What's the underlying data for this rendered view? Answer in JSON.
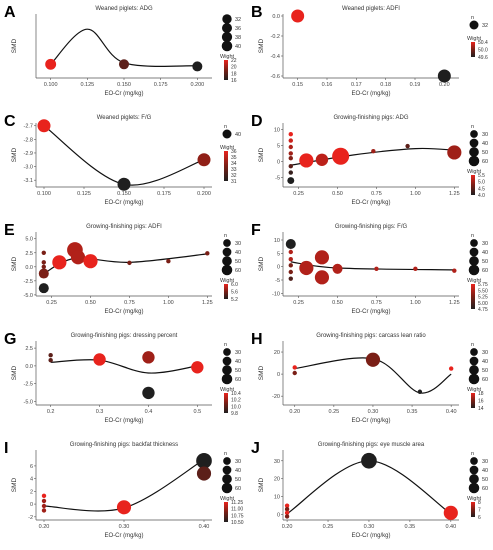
{
  "chart_data": [
    {
      "letter": "A",
      "type": "scatter",
      "title": "Weaned piglets: ADG",
      "xlabel": "EO-Cr (mg/kg)",
      "ylabel": "SMD",
      "xlim": [
        0.09,
        0.21
      ],
      "ylim": [
        -1,
        20
      ],
      "xticks": [
        0.1,
        0.125,
        0.15,
        0.175,
        0.2
      ],
      "xtick_labels": [
        "0.100",
        "0.125",
        "0.150",
        "0.175",
        "0.200"
      ],
      "yticks": [],
      "ytick_labels": [],
      "curve": [
        [
          0.1,
          3.5
        ],
        [
          0.125,
          15
        ],
        [
          0.15,
          4
        ],
        [
          0.2,
          3
        ]
      ],
      "points": [
        [
          0.1,
          3.5,
          22,
          18
        ],
        [
          0.15,
          3.5,
          18,
          16
        ],
        [
          0.2,
          2.8,
          16,
          16
        ]
      ],
      "legend": {
        "n_label": "",
        "n_values": [
          32,
          36,
          38,
          40
        ],
        "w_title": "Wight",
        "w_labels": [
          "22",
          "20",
          "18",
          "16"
        ]
      }
    },
    {
      "letter": "B",
      "type": "scatter",
      "title": "Weaned piglets: ADFI",
      "xlabel": "EO-Cr (mg/kg)",
      "ylabel": "SMD",
      "xlim": [
        0.145,
        0.205
      ],
      "ylim": [
        -0.62,
        0.02
      ],
      "xticks": [
        0.15,
        0.16,
        0.17,
        0.18,
        0.19,
        0.2
      ],
      "xtick_labels": [
        "0.15",
        "0.16",
        "0.17",
        "0.18",
        "0.19",
        "0.20"
      ],
      "yticks": [
        0.0,
        -0.2,
        -0.4,
        -0.6
      ],
      "ytick_labels": [
        "0.0",
        "-0.2",
        "-0.4",
        "-0.6"
      ],
      "curve": [],
      "points": [
        [
          0.15,
          0.0,
          50.4,
          32
        ],
        [
          0.2,
          -0.6,
          49.6,
          32
        ]
      ],
      "legend": {
        "n_label": "n",
        "n_values": [
          32
        ],
        "w_title": "Wight",
        "w_labels": [
          "50.4",
          "50.0",
          "49.6"
        ]
      }
    },
    {
      "letter": "C",
      "type": "scatter",
      "title": "Weaned piglets: F/G",
      "xlabel": "EO-Cr (mg/kg)",
      "ylabel": "SMD",
      "xlim": [
        0.095,
        0.205
      ],
      "ylim": [
        -3.15,
        -2.68
      ],
      "xticks": [
        0.1,
        0.125,
        0.15,
        0.175,
        0.2
      ],
      "xtick_labels": [
        "0.100",
        "0.125",
        "0.150",
        "0.175",
        "0.200"
      ],
      "yticks": [
        -2.7,
        -2.8,
        -2.9,
        -3.0,
        -3.1
      ],
      "ytick_labels": [
        "-2.7",
        "-2.8",
        "-2.9",
        "-3.0",
        "-3.1"
      ],
      "curve": [
        [
          0.1,
          -2.7
        ],
        [
          0.15,
          -3.13
        ],
        [
          0.2,
          -2.95
        ]
      ],
      "points": [
        [
          0.1,
          -2.7,
          36,
          40
        ],
        [
          0.15,
          -3.13,
          31,
          40
        ],
        [
          0.2,
          -2.95,
          34,
          40
        ]
      ],
      "legend": {
        "n_label": "n",
        "n_values": [
          40
        ],
        "w_title": "Wight",
        "w_labels": [
          "36",
          "35",
          "34",
          "33",
          "32",
          "31"
        ]
      }
    },
    {
      "letter": "D",
      "type": "scatter",
      "title": "Growing-finishing pigs: ADG",
      "xlabel": "EO-Cr (mg/kg)",
      "ylabel": "SMD",
      "xlim": [
        0.15,
        1.28
      ],
      "ylim": [
        -8,
        12
      ],
      "xticks": [
        0.25,
        0.5,
        0.75,
        1.0,
        1.25
      ],
      "xtick_labels": [
        "0.25",
        "0.50",
        "0.75",
        "1.00",
        "1.25"
      ],
      "yticks": [
        10,
        5,
        0,
        -5
      ],
      "ytick_labels": [
        "10",
        "5",
        "0",
        "-5"
      ],
      "curve": [
        [
          0.2,
          -1.2
        ],
        [
          0.6,
          2
        ],
        [
          1.0,
          4
        ],
        [
          1.25,
          3.5
        ]
      ],
      "points": [
        [
          0.2,
          8.5,
          5.5,
          10
        ],
        [
          0.2,
          6.5,
          5.3,
          10
        ],
        [
          0.2,
          4.5,
          5.1,
          10
        ],
        [
          0.2,
          2.5,
          5.0,
          10
        ],
        [
          0.2,
          1.0,
          4.8,
          10
        ],
        [
          0.2,
          -1.5,
          4.5,
          10
        ],
        [
          0.2,
          -3.5,
          4.2,
          10
        ],
        [
          0.2,
          -6,
          4.0,
          12
        ],
        [
          0.3,
          0.3,
          5.5,
          40
        ],
        [
          0.4,
          0.5,
          5.2,
          30
        ],
        [
          0.52,
          1.6,
          5.5,
          60
        ],
        [
          0.73,
          3.2,
          5.0,
          10
        ],
        [
          0.95,
          4.8,
          4.5,
          10
        ],
        [
          1.25,
          2.8,
          5.0,
          40
        ]
      ],
      "legend": {
        "n_label": "n",
        "n_values": [
          30,
          40,
          50,
          60
        ],
        "w_title": "Wight",
        "w_labels": [
          "5.5",
          "5.0",
          "4.5",
          "4.0"
        ]
      }
    },
    {
      "letter": "E",
      "type": "scatter",
      "title": "Growing-finishing pigs: ADFI",
      "xlabel": "EO-Cr (mg/kg)",
      "ylabel": "SMD",
      "xlim": [
        0.15,
        1.28
      ],
      "ylim": [
        -5.2,
        6.2
      ],
      "xticks": [
        0.25,
        0.5,
        0.75,
        1.0,
        1.25
      ],
      "xtick_labels": [
        "0.25",
        "0.50",
        "0.75",
        "1.00",
        "1.25"
      ],
      "yticks": [
        5.0,
        2.5,
        0.0,
        -2.5,
        -5.0
      ],
      "ytick_labels": [
        "5.0",
        "2.5",
        "0.0",
        "-2.5",
        "-5.0"
      ],
      "curve": [
        [
          0.2,
          -1.2
        ],
        [
          0.4,
          1.5
        ],
        [
          0.75,
          0.8
        ],
        [
          1.25,
          2.3
        ]
      ],
      "points": [
        [
          0.2,
          2.5,
          5.6,
          10
        ],
        [
          0.2,
          0.8,
          5.6,
          10
        ],
        [
          0.2,
          0.0,
          5.6,
          10
        ],
        [
          0.2,
          -1.2,
          5.6,
          20
        ],
        [
          0.2,
          -3.8,
          5.0,
          20
        ],
        [
          0.3,
          0.8,
          6.0,
          40
        ],
        [
          0.4,
          3.0,
          5.8,
          50
        ],
        [
          0.42,
          1.7,
          5.8,
          40
        ],
        [
          0.5,
          1.0,
          6.0,
          40
        ],
        [
          0.75,
          0.7,
          5.6,
          10
        ],
        [
          1.0,
          1.0,
          5.6,
          10
        ],
        [
          1.25,
          2.4,
          5.6,
          10
        ]
      ],
      "legend": {
        "n_label": "n",
        "n_values": [
          30,
          40,
          50,
          60
        ],
        "w_title": "Wight",
        "w_labels": [
          "6.0",
          "5.6",
          "5.2"
        ]
      }
    },
    {
      "letter": "F",
      "type": "scatter",
      "title": "Growing-finishing pigs: F/G",
      "xlabel": "EO-Cr (mg/kg)",
      "ylabel": "SMD",
      "xlim": [
        0.15,
        1.28
      ],
      "ylim": [
        -11,
        13
      ],
      "xticks": [
        0.25,
        0.5,
        0.75,
        1.0,
        1.25
      ],
      "xtick_labels": [
        "0.25",
        "0.50",
        "0.75",
        "1.00",
        "1.25"
      ],
      "yticks": [
        10,
        5,
        0,
        -5,
        -10
      ],
      "ytick_labels": [
        "10",
        "5",
        "0",
        "-5",
        "-10"
      ],
      "curve": [
        [
          0.2,
          1.8
        ],
        [
          0.5,
          -0.5
        ],
        [
          1.25,
          -1.2
        ]
      ],
      "points": [
        [
          0.2,
          8.5,
          4.75,
          20
        ],
        [
          0.2,
          5.5,
          5.5,
          10
        ],
        [
          0.2,
          2.8,
          5.5,
          10
        ],
        [
          0.2,
          0.5,
          5.25,
          10
        ],
        [
          0.2,
          -2.0,
          5.25,
          10
        ],
        [
          0.2,
          -4.5,
          5.0,
          10
        ],
        [
          0.3,
          -0.5,
          5.5,
          40
        ],
        [
          0.4,
          3.5,
          5.5,
          40
        ],
        [
          0.4,
          -4.0,
          5.5,
          40
        ],
        [
          0.5,
          -0.8,
          5.5,
          20
        ],
        [
          0.75,
          -0.8,
          5.5,
          10
        ],
        [
          1.0,
          -0.8,
          5.5,
          10
        ],
        [
          1.25,
          -1.5,
          5.5,
          10
        ]
      ],
      "legend": {
        "n_label": "n",
        "n_values": [
          30,
          40,
          50,
          60
        ],
        "w_title": "Wight",
        "w_labels": [
          "5.75",
          "5.50",
          "5.25",
          "5.00",
          "4.75"
        ]
      }
    },
    {
      "letter": "G",
      "type": "scatter",
      "title": "Growing-finishing pigs: dressing percent",
      "xlabel": "EO-Cr (mg/kg)",
      "ylabel": "SMD",
      "xlim": [
        0.17,
        0.53
      ],
      "ylim": [
        -5.5,
        3.5
      ],
      "xticks": [
        0.2,
        0.3,
        0.4,
        0.5
      ],
      "xtick_labels": [
        "0.2",
        "0.3",
        "0.4",
        "0.5"
      ],
      "yticks": [
        2.5,
        0.0,
        -2.5,
        -5.0
      ],
      "ytick_labels": [
        "2.5",
        "0.0",
        "-2.5",
        "-5.0"
      ],
      "curve": [
        [
          0.2,
          0.5
        ],
        [
          0.3,
          0.8
        ],
        [
          0.4,
          -1.0
        ],
        [
          0.5,
          0.0
        ]
      ],
      "points": [
        [
          0.2,
          1.5,
          10.0,
          10
        ],
        [
          0.2,
          0.8,
          10.0,
          10
        ],
        [
          0.3,
          0.9,
          10.4,
          30
        ],
        [
          0.4,
          1.2,
          10.2,
          30
        ],
        [
          0.4,
          -3.8,
          9.8,
          30
        ],
        [
          0.5,
          -0.2,
          10.4,
          30
        ]
      ],
      "legend": {
        "n_label": "n",
        "n_values": [
          30,
          40,
          50,
          60
        ],
        "w_title": "Wight",
        "w_labels": [
          "10.4",
          "10.2",
          "10.0",
          "9.8"
        ]
      }
    },
    {
      "letter": "H",
      "type": "scatter",
      "title": "Growing-finishing pigs: carcass lean ratio",
      "xlabel": "EO-Cr (mg/kg)",
      "ylabel": "SMD",
      "xlim": [
        0.185,
        0.41
      ],
      "ylim": [
        -28,
        30
      ],
      "xticks": [
        0.2,
        0.25,
        0.3,
        0.35,
        0.4
      ],
      "xtick_labels": [
        "0.20",
        "0.25",
        "0.30",
        "0.35",
        "0.40"
      ],
      "yticks": [
        20,
        0,
        -20
      ],
      "ytick_labels": [
        "20",
        "0",
        "-20"
      ],
      "curve": [
        [
          0.2,
          5
        ],
        [
          0.3,
          14
        ],
        [
          0.36,
          -17
        ],
        [
          0.4,
          0
        ]
      ],
      "points": [
        [
          0.2,
          6,
          18,
          10
        ],
        [
          0.2,
          1,
          16,
          10
        ],
        [
          0.3,
          13,
          16,
          40
        ],
        [
          0.36,
          -16,
          14,
          10
        ],
        [
          0.4,
          5,
          18,
          10
        ]
      ],
      "legend": {
        "n_label": "n",
        "n_values": [
          30,
          40,
          50,
          60
        ],
        "w_title": "Wight",
        "w_labels": [
          "18",
          "16",
          "14"
        ]
      }
    },
    {
      "letter": "I",
      "type": "scatter",
      "title": "Growing-finishing pigs: backfat thickness",
      "xlabel": "EO-Cr (mg/kg)",
      "ylabel": "SMD",
      "xlim": [
        0.19,
        0.41
      ],
      "ylim": [
        -2.5,
        8.5
      ],
      "xticks": [
        0.2,
        0.3,
        0.4
      ],
      "xtick_labels": [
        "0.20",
        "0.30",
        "0.40"
      ],
      "yticks": [
        6,
        4,
        2,
        0,
        -2
      ],
      "ytick_labels": [
        "6",
        "4",
        "2",
        "0",
        "-2"
      ],
      "curve": [
        [
          0.2,
          -0.3
        ],
        [
          0.3,
          -0.6
        ],
        [
          0.4,
          7.0
        ]
      ],
      "points": [
        [
          0.2,
          1.3,
          11.25,
          10
        ],
        [
          0.2,
          0.5,
          11.0,
          10
        ],
        [
          0.2,
          -0.3,
          11.0,
          10
        ],
        [
          0.2,
          -1.0,
          11.0,
          10
        ],
        [
          0.3,
          -0.5,
          11.25,
          40
        ],
        [
          0.4,
          6.8,
          10.5,
          50
        ],
        [
          0.4,
          4.8,
          10.75,
          40
        ]
      ],
      "legend": {
        "n_label": "n",
        "n_values": [
          30,
          40,
          50,
          60
        ],
        "w_title": "Wight",
        "w_labels": [
          "11.25",
          "11.00",
          "10.75",
          "10.50"
        ]
      }
    },
    {
      "letter": "J",
      "type": "scatter",
      "title": "Growing-finishing pigs: eye muscle area",
      "xlabel": "EO-Cr (mg/kg)",
      "ylabel": "SMD",
      "xlim": [
        0.195,
        0.41
      ],
      "ylim": [
        -3,
        36
      ],
      "xticks": [
        0.2,
        0.25,
        0.3,
        0.35,
        0.4
      ],
      "xtick_labels": [
        "0.20",
        "0.25",
        "0.30",
        "0.35",
        "0.40"
      ],
      "yticks": [
        30,
        20,
        10,
        0
      ],
      "ytick_labels": [
        "30",
        "20",
        "10",
        "0"
      ],
      "curve": [
        [
          0.2,
          0.5
        ],
        [
          0.3,
          30
        ],
        [
          0.4,
          0.5
        ]
      ],
      "points": [
        [
          0.2,
          5,
          8,
          10
        ],
        [
          0.2,
          3,
          7,
          10
        ],
        [
          0.2,
          1,
          8,
          10
        ],
        [
          0.2,
          -1,
          7,
          10
        ],
        [
          0.3,
          30,
          6,
          50
        ],
        [
          0.4,
          1,
          8,
          40
        ]
      ],
      "legend": {
        "n_label": "n",
        "n_values": [
          30,
          40,
          50,
          60
        ],
        "w_title": "Wight",
        "w_labels": [
          "8",
          "7",
          "6"
        ]
      }
    }
  ]
}
